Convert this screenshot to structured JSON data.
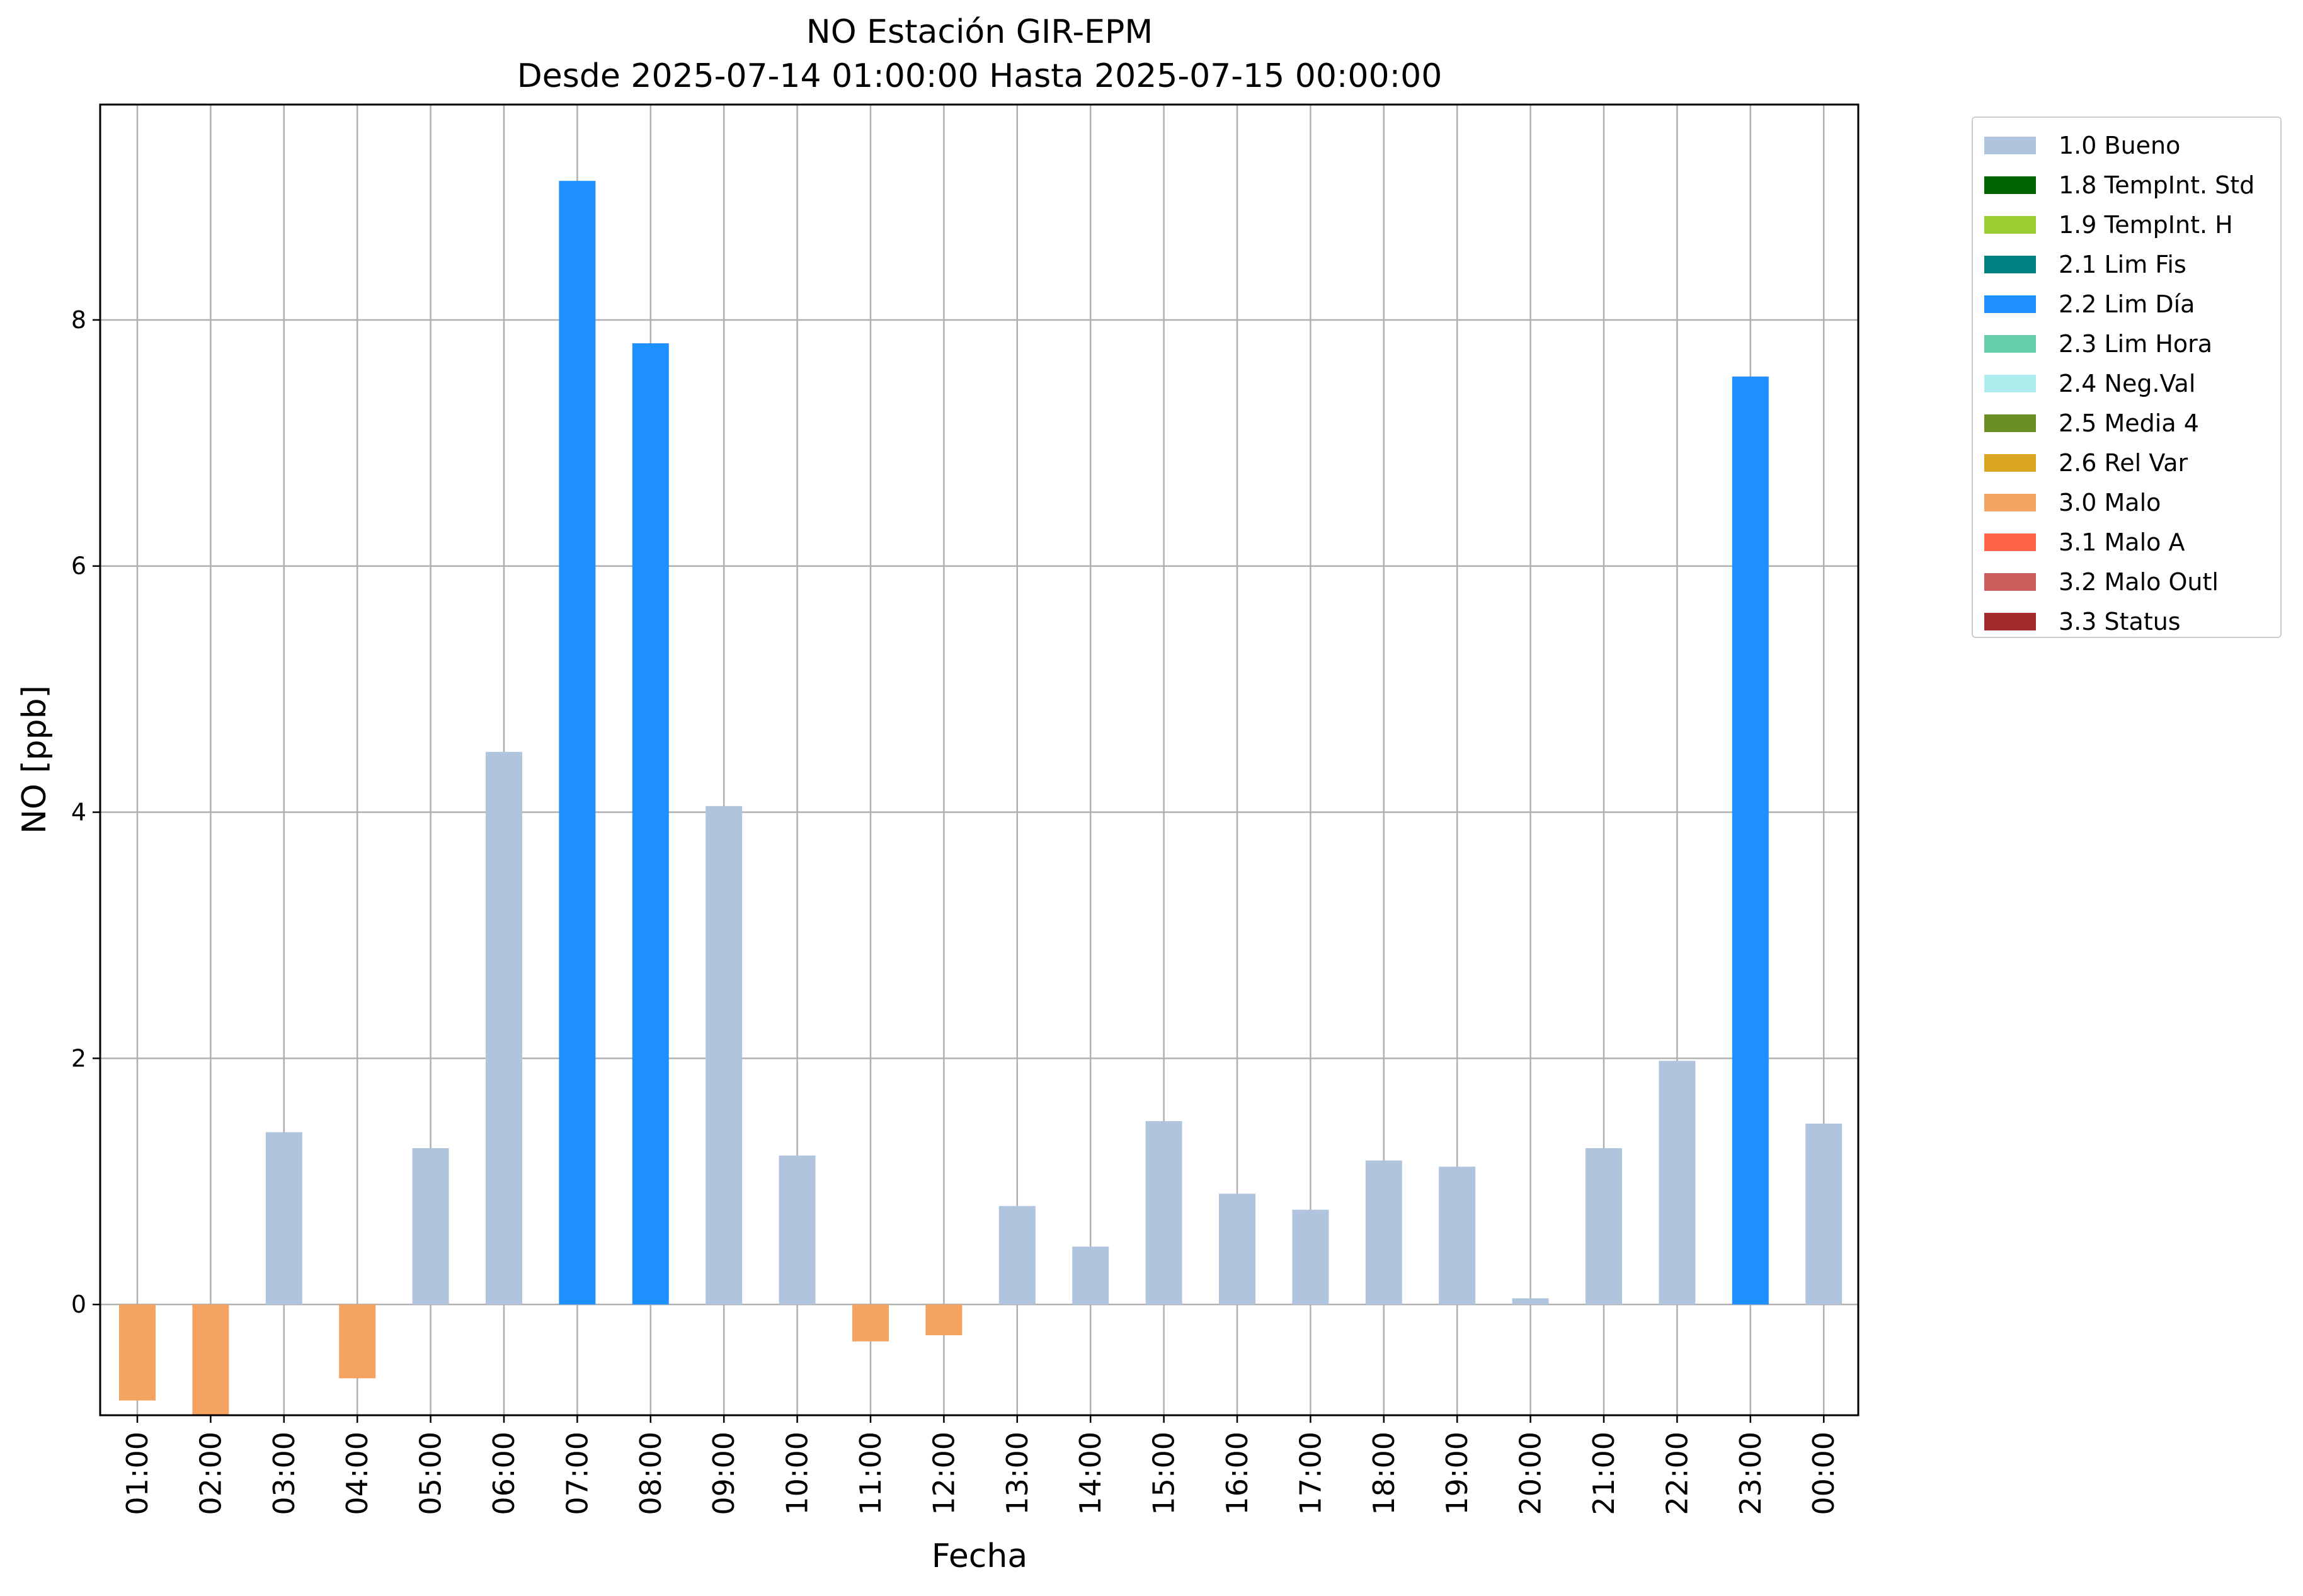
{
  "chart_data": {
    "type": "bar",
    "title": "NO Estación GIR-EPM",
    "subtitle": "Desde 2025-07-14 01:00:00 Hasta 2025-07-15 00:00:00",
    "xlabel": "Fecha",
    "ylabel": "NO [ppb]",
    "ylim": [
      -0.9,
      9.75
    ],
    "yticks": [
      0,
      2,
      4,
      6,
      8
    ],
    "grid": true,
    "legend_position": "outside-top-right",
    "categories": [
      "01:00",
      "02:00",
      "03:00",
      "04:00",
      "05:00",
      "06:00",
      "07:00",
      "08:00",
      "09:00",
      "10:00",
      "11:00",
      "12:00",
      "13:00",
      "14:00",
      "15:00",
      "16:00",
      "17:00",
      "18:00",
      "19:00",
      "20:00",
      "21:00",
      "22:00",
      "23:00",
      "00:00"
    ],
    "values": [
      -0.78,
      -0.9,
      1.4,
      -0.6,
      1.27,
      4.49,
      9.13,
      7.81,
      4.05,
      1.21,
      -0.3,
      -0.25,
      0.8,
      0.47,
      1.49,
      0.9,
      0.77,
      1.17,
      1.12,
      0.05,
      1.27,
      1.98,
      7.54,
      1.47
    ],
    "flags": [
      "3.0 Malo",
      "3.0 Malo",
      "1.0 Bueno",
      "3.0 Malo",
      "1.0 Bueno",
      "1.0 Bueno",
      "2.2 Lim Día",
      "2.2 Lim Día",
      "1.0 Bueno",
      "1.0 Bueno",
      "3.0 Malo",
      "3.0 Malo",
      "1.0 Bueno",
      "1.0 Bueno",
      "1.0 Bueno",
      "1.0 Bueno",
      "1.0 Bueno",
      "1.0 Bueno",
      "1.0 Bueno",
      "1.0 Bueno",
      "1.0 Bueno",
      "1.0 Bueno",
      "2.2 Lim Día",
      "1.0 Bueno"
    ],
    "legend": [
      {
        "label": "1.0 Bueno",
        "color": "#b0c4de"
      },
      {
        "label": "1.8 TempInt. Std",
        "color": "#006400"
      },
      {
        "label": "1.9 TempInt. H",
        "color": "#9acd32"
      },
      {
        "label": "2.1 Lim Fis",
        "color": "#008080"
      },
      {
        "label": "2.2 Lim Día",
        "color": "#1e90ff"
      },
      {
        "label": "2.3 Lim Hora",
        "color": "#66cdaa"
      },
      {
        "label": "2.4 Neg.Val",
        "color": "#afeeee"
      },
      {
        "label": "2.5 Media 4",
        "color": "#6b8e23"
      },
      {
        "label": "2.6 Rel Var",
        "color": "#daa520"
      },
      {
        "label": "3.0 Malo",
        "color": "#f4a460"
      },
      {
        "label": "3.1 Malo A",
        "color": "#ff6347"
      },
      {
        "label": "3.2 Malo Outl",
        "color": "#cd5c5c"
      },
      {
        "label": "3.3 Status",
        "color": "#a52a2a"
      }
    ]
  }
}
